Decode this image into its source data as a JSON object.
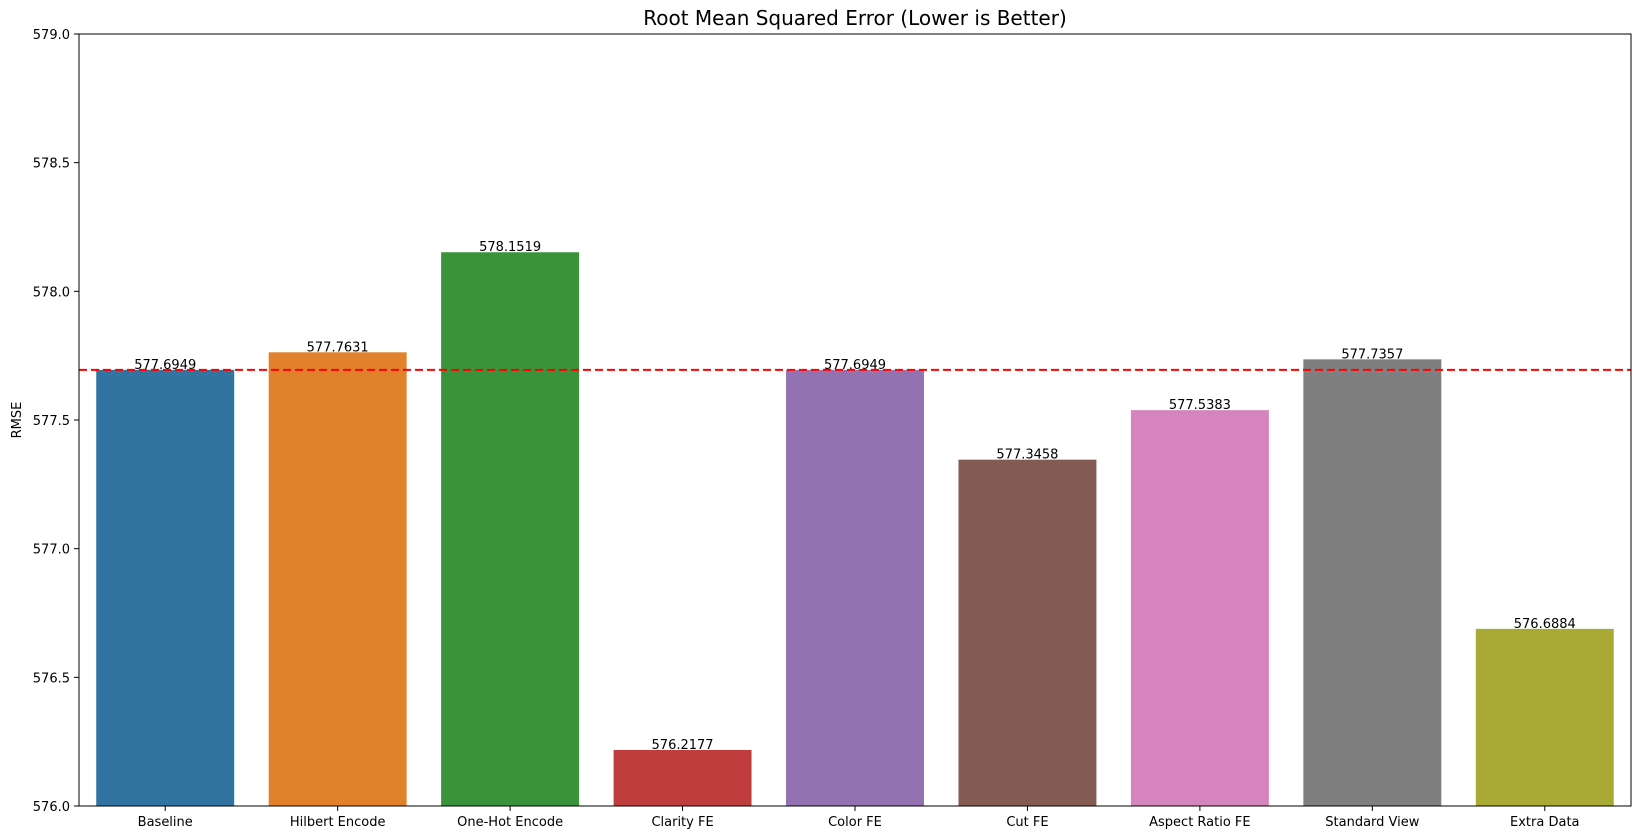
{
  "chart_data": {
    "type": "bar",
    "title": "Root Mean Squared Error (Lower is Better)",
    "xlabel": "",
    "ylabel": "RMSE",
    "ylim": [
      576.0,
      579.0
    ],
    "yticks": [
      "576.0",
      "576.5",
      "577.0",
      "577.5",
      "578.0",
      "578.5",
      "579.0"
    ],
    "categories": [
      "Baseline",
      "Hilbert Encode",
      "One-Hot Encode",
      "Clarity FE",
      "Color FE",
      "Cut FE",
      "Aspect Ratio FE",
      "Standard View",
      "Extra Data"
    ],
    "values": [
      577.6949,
      577.7631,
      578.1519,
      576.2177,
      577.6949,
      577.3458,
      577.5383,
      577.7357,
      576.6884
    ],
    "value_labels": [
      "577.6949",
      "577.7631",
      "578.1519",
      "576.2177",
      "577.6949",
      "577.3458",
      "577.5383",
      "577.7357",
      "576.6884"
    ],
    "colors": [
      "#3274a1",
      "#e1812c",
      "#3a923a",
      "#c03d3e",
      "#9372b2",
      "#845b53",
      "#d684bd",
      "#7f7f7f",
      "#a9aa35"
    ],
    "reference_line": {
      "value": 577.6949,
      "color": "#ff0000",
      "style": "dashed"
    },
    "grid": false,
    "legend": "none"
  }
}
